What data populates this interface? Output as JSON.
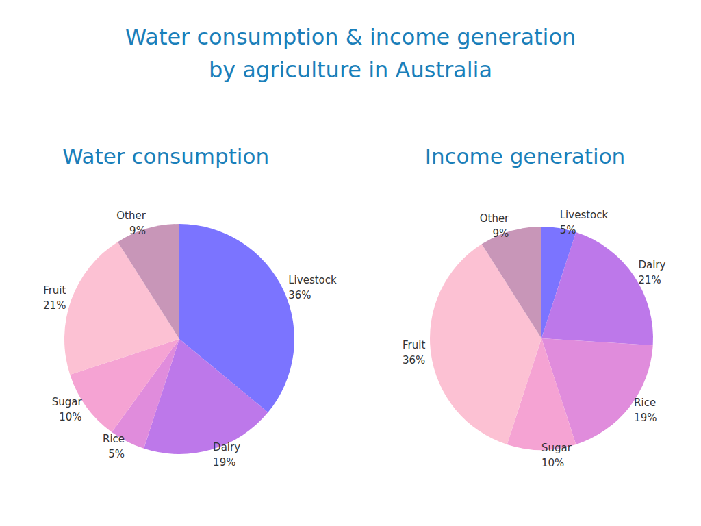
{
  "title": [
    "Water consumption & income generation",
    "by agriculture in Australia"
  ],
  "chart_data": [
    {
      "type": "pie",
      "title": "Water consumption",
      "categories": [
        "Livestock",
        "Dairy",
        "Rice",
        "Sugar",
        "Fruit",
        "Other"
      ],
      "values": [
        36,
        19,
        5,
        10,
        21,
        9
      ],
      "value_labels": [
        "36%",
        "19%",
        "5%",
        "10%",
        "21%",
        "9%"
      ],
      "colors": [
        "#7b74ff",
        "#bd78ea",
        "#e08cdc",
        "#f5a3d3",
        "#fcc1d3",
        "#c896b8"
      ],
      "data_labels": true
    },
    {
      "type": "pie",
      "title": "Income generation",
      "categories": [
        "Livestock",
        "Dairy",
        "Rice",
        "Sugar",
        "Fruit",
        "Other"
      ],
      "values": [
        5,
        21,
        19,
        10,
        36,
        9
      ],
      "value_labels": [
        "5%",
        "21%",
        "19%",
        "10%",
        "36%",
        "9%"
      ],
      "colors": [
        "#7b74ff",
        "#bd78ea",
        "#e08cdc",
        "#f5a3d3",
        "#fcc1d3",
        "#c896b8"
      ],
      "data_labels": true
    }
  ]
}
